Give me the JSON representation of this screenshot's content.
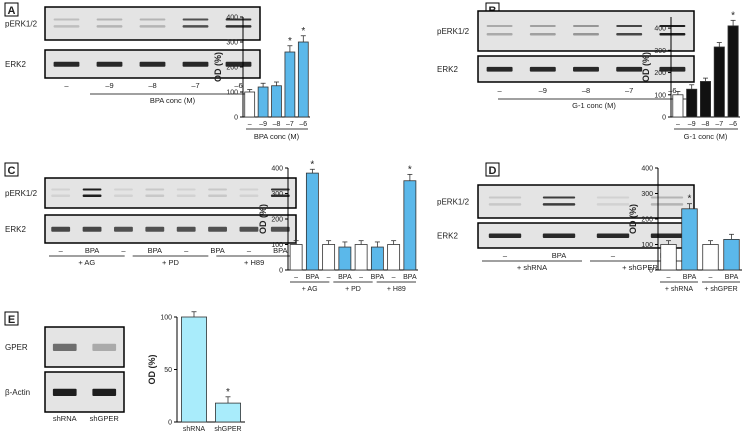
{
  "blot_bg": "#e4e4e4",
  "bar_colors": {
    "white": "#ffffff",
    "blue": "#5bb8ea",
    "black": "#111111",
    "lightblue": "#a9ecfb"
  },
  "asterisk": "*",
  "panels": [
    {
      "letter": "A",
      "blot": {
        "rows": [
          "pERK1/2",
          "ERK2"
        ],
        "lanes": [
          "–",
          "–9",
          "–8",
          "–7",
          "–6"
        ],
        "caption": "BPA conc (M)"
      },
      "chart_data": {
        "type": "bar",
        "ylabel": "OD (%)",
        "xlabel": "BPA conc (M)",
        "ylim": [
          0,
          400
        ],
        "yticks": [
          0,
          100,
          200,
          300,
          400
        ],
        "categories": [
          "–",
          "–9",
          "–8",
          "–7",
          "–6"
        ],
        "values": [
          100,
          120,
          125,
          260,
          300
        ],
        "errors": [
          10,
          15,
          15,
          25,
          25
        ],
        "colors": [
          "white",
          "blue",
          "blue",
          "blue",
          "blue"
        ],
        "significant": [
          false,
          false,
          false,
          true,
          true
        ]
      }
    },
    {
      "letter": "B",
      "blot": {
        "rows": [
          "pERK1/2",
          "ERK2"
        ],
        "lanes": [
          "–",
          "–9",
          "–8",
          "–7",
          "–6"
        ],
        "caption": "G-1 conc (M)"
      },
      "chart_data": {
        "type": "bar",
        "ylabel": "OD (%)",
        "xlabel": "G-1 conc (M)",
        "ylim": [
          0,
          450
        ],
        "yticks": [
          0,
          100,
          200,
          300,
          400
        ],
        "categories": [
          "–",
          "–9",
          "–8",
          "–7",
          "–6"
        ],
        "values": [
          100,
          125,
          160,
          315,
          410
        ],
        "errors": [
          15,
          20,
          15,
          20,
          25
        ],
        "colors": [
          "white",
          "black",
          "black",
          "black",
          "black"
        ],
        "significant": [
          false,
          false,
          false,
          false,
          true
        ]
      }
    },
    {
      "letter": "C",
      "blot": {
        "rows": [
          "pERK1/2",
          "ERK2"
        ],
        "lanes": [
          "–",
          "BPA",
          "–",
          "BPA",
          "–",
          "BPA",
          "–",
          "BPA"
        ],
        "groups": [
          "+ AG",
          "+ PD",
          "+ H89"
        ]
      },
      "chart_data": {
        "type": "bar",
        "ylabel": "OD (%)",
        "ylim": [
          0,
          400
        ],
        "yticks": [
          0,
          100,
          200,
          300,
          400
        ],
        "categories": [
          "–",
          "BPA",
          "–",
          "BPA",
          "–",
          "BPA",
          "–",
          "BPA"
        ],
        "groups": [
          "+ AG",
          "+ PD",
          "+ H89"
        ],
        "values": [
          100,
          380,
          100,
          90,
          100,
          90,
          100,
          350
        ],
        "errors": [
          15,
          15,
          15,
          20,
          15,
          20,
          15,
          25
        ],
        "colors": [
          "white",
          "blue",
          "white",
          "blue",
          "white",
          "blue",
          "white",
          "blue"
        ],
        "significant": [
          false,
          true,
          false,
          false,
          false,
          false,
          false,
          true
        ]
      }
    },
    {
      "letter": "D",
      "blot": {
        "rows": [
          "pERK1/2",
          "ERK2"
        ],
        "lanes": [
          "–",
          "BPA",
          "–",
          "BPA"
        ],
        "groups": [
          "+ shRNA",
          "+ shGPER"
        ]
      },
      "chart_data": {
        "type": "bar",
        "ylabel": "OD (%)",
        "ylim": [
          0,
          400
        ],
        "yticks": [
          0,
          100,
          200,
          300,
          400
        ],
        "categories": [
          "–",
          "BPA",
          "–",
          "BPA"
        ],
        "groups": [
          "+ shRNA",
          "+ shGPER"
        ],
        "values": [
          100,
          240,
          100,
          120
        ],
        "errors": [
          15,
          20,
          15,
          20
        ],
        "colors": [
          "white",
          "blue",
          "white",
          "blue"
        ],
        "significant": [
          false,
          true,
          false,
          false
        ]
      }
    },
    {
      "letter": "E",
      "blot": {
        "rows": [
          "GPER",
          "β-Actin"
        ],
        "lanes": [
          "shRNA",
          "shGPER"
        ]
      },
      "chart_data": {
        "type": "bar",
        "ylabel": "OD (%)",
        "ylim": [
          0,
          100
        ],
        "yticks": [
          0,
          50,
          100
        ],
        "categories": [
          "shRNA",
          "shGPER"
        ],
        "values": [
          100,
          18
        ],
        "errors": [
          5,
          6
        ],
        "colors": [
          "lightblue",
          "lightblue"
        ],
        "significant": [
          false,
          true
        ]
      }
    }
  ]
}
